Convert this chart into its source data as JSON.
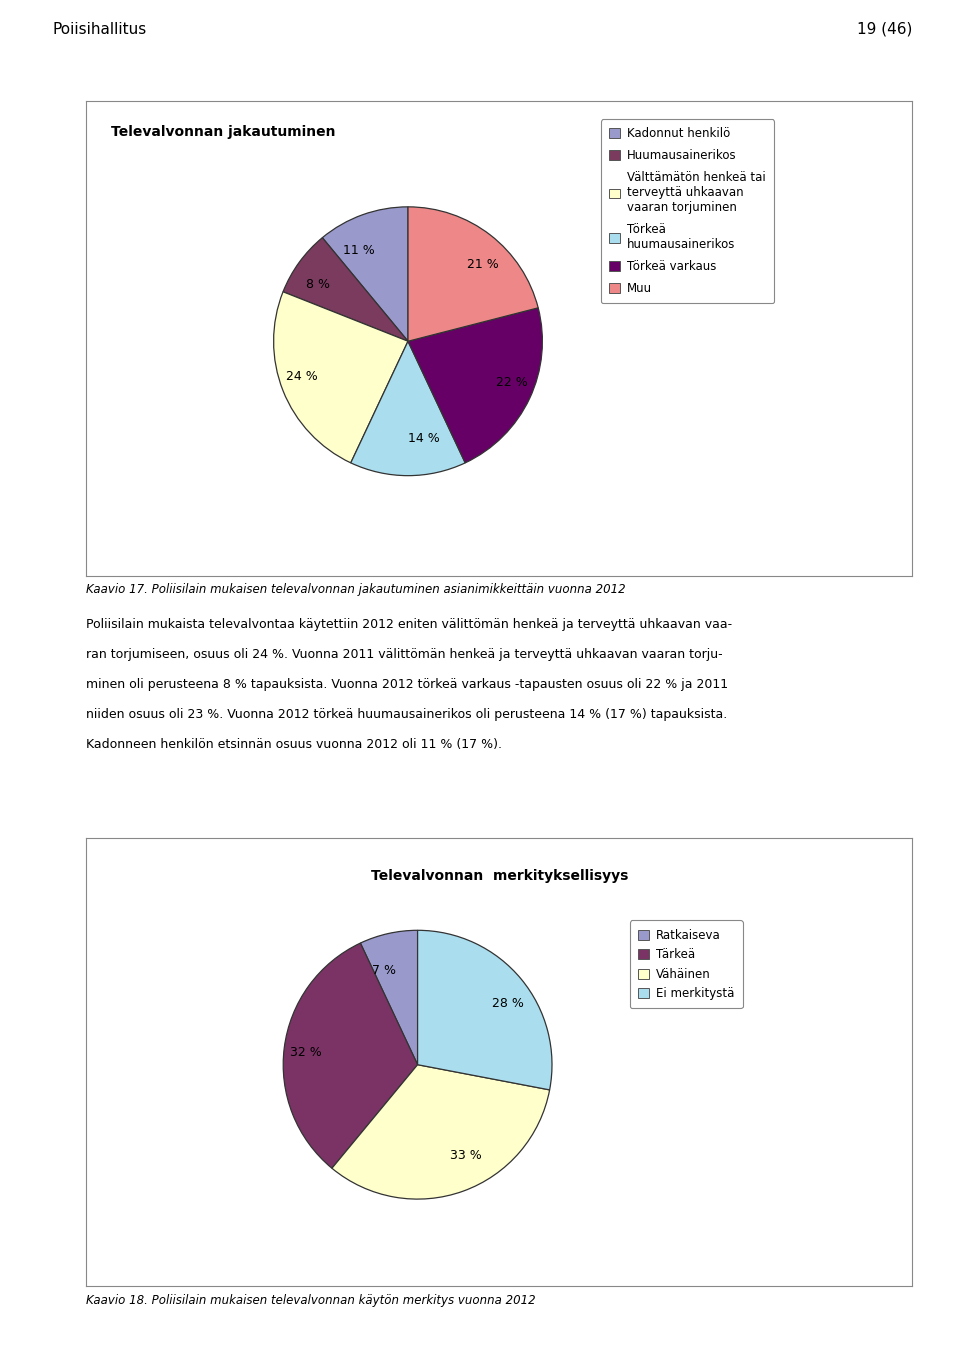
{
  "page_header_left": "Poiisihallitus",
  "page_header_right": "19 (46)",
  "chart1_title": "Televalvonnan jakautuminen",
  "chart1_slices": [
    11,
    8,
    24,
    14,
    22,
    21
  ],
  "chart1_labels": [
    "11 %",
    "8 %",
    "24 %",
    "14 %",
    "22 %",
    "21 %"
  ],
  "chart1_colors": [
    "#9999cc",
    "#7b3b5e",
    "#ffffcc",
    "#aaddee",
    "#660066",
    "#ee8888"
  ],
  "chart1_legend_labels": [
    "Kadonnut henkilö",
    "Huumausainerikos",
    "Välttämätön henkeä tai\nterveyttä uhkaavan\nvaaran torjuminen",
    "Törkeä\nhuumausainerikos",
    "Törkeä varkaus",
    "Muu"
  ],
  "chart1_legend_colors": [
    "#9999cc",
    "#7b3b5e",
    "#ffffcc",
    "#aaddee",
    "#660066",
    "#ee8888"
  ],
  "chart1_startangle": 90,
  "body_text_lines": [
    "Poliisilain mukaista televalvontaa käytettiin 2012 eniten välittömän henkeä ja terveyttä uhkaavan vaa-",
    "ran torjumiseen, osuus oli 24 %. Vuonna 2011 välittömän henkeä ja terveyttä uhkaavan vaaran torju-",
    "minen oli perusteena 8 % tapauksista. Vuonna 2012 törkeä varkaus -tapausten osuus oli 22 % ja 2011",
    "niiden osuus oli 23 %. Vuonna 2012 törkeä huumausainerikos oli perusteena 14 % (17 %) tapauksista.",
    "Kadonneen henkilön etsinnän osuus vuonna 2012 oli 11 % (17 %)."
  ],
  "chart2_title": "Televalvonnan  merkityksellisyys",
  "chart2_slices": [
    7,
    32,
    33,
    28
  ],
  "chart2_labels": [
    "7 %",
    "32 %",
    "33 %",
    "28 %"
  ],
  "chart2_colors": [
    "#9999cc",
    "#7b3366",
    "#ffffcc",
    "#aaddee"
  ],
  "chart2_legend_labels": [
    "Ratkaiseva",
    "Tärkeä",
    "Vähäinen",
    "Ei merkitystä"
  ],
  "chart2_legend_colors": [
    "#9999cc",
    "#7b3366",
    "#ffffcc",
    "#aaddee"
  ],
  "chart2_startangle": 90,
  "caption1": "Kaavio 17. Poliisilain mukaisen televalvonnan jakautuminen asianimikkeittäin vuonna 2012",
  "caption2": "Kaavio 18. Poliisilain mukaisen televalvonnan käytön merkitys vuonna 2012",
  "bg_color": "#ffffff",
  "box_color": "#ffffff",
  "box_edge_color": "#888888"
}
